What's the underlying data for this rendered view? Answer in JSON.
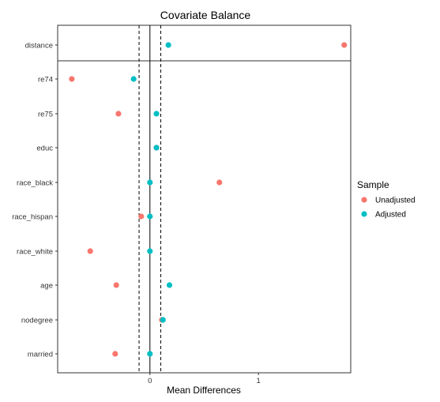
{
  "chart_data": {
    "type": "scatter",
    "title": "Covariate Balance",
    "xlabel": "Mean Differences",
    "ylabel": "",
    "xlim": [
      -0.85,
      1.85
    ],
    "x_ticks": [
      0,
      1
    ],
    "threshold_lines": [
      -0.1,
      0.1
    ],
    "zero_line": 0,
    "grid": false,
    "categories": [
      "distance",
      "re74",
      "re75",
      "educ",
      "race_black",
      "race_hispan",
      "race_white",
      "age",
      "nodegree",
      "married"
    ],
    "series": [
      {
        "name": "Unadjusted",
        "color": "#F8766D",
        "values": [
          1.79,
          -0.72,
          -0.29,
          0.06,
          0.64,
          -0.08,
          -0.55,
          -0.31,
          0.11,
          -0.32
        ]
      },
      {
        "name": "Adjusted",
        "color": "#00BFC4",
        "values": [
          0.17,
          -0.15,
          0.06,
          0.06,
          0.0,
          0.0,
          0.0,
          0.18,
          0.12,
          0.0
        ]
      }
    ],
    "legend": {
      "title": "Sample",
      "position": "right"
    }
  }
}
